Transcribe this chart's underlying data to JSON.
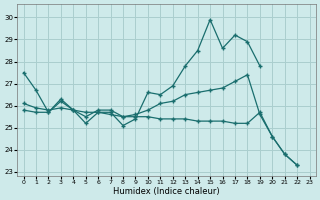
{
  "xlabel": "Humidex (Indice chaleur)",
  "bg_color": "#ceeaea",
  "grid_color": "#aacece",
  "line_color": "#1a6e6e",
  "xlim": [
    -0.5,
    23.5
  ],
  "ylim": [
    22.8,
    30.6
  ],
  "yticks": [
    23,
    24,
    25,
    26,
    27,
    28,
    29,
    30
  ],
  "xticks": [
    0,
    1,
    2,
    3,
    4,
    5,
    6,
    7,
    8,
    9,
    10,
    11,
    12,
    13,
    14,
    15,
    16,
    17,
    18,
    19,
    20,
    21,
    22,
    23
  ],
  "line1_x": [
    0,
    1,
    2,
    3,
    4,
    5,
    6,
    7,
    8,
    9,
    10,
    11,
    12,
    13,
    14,
    15,
    16,
    17,
    18,
    19
  ],
  "line1_y": [
    27.5,
    26.7,
    25.7,
    26.3,
    25.8,
    25.2,
    25.7,
    25.7,
    25.1,
    25.4,
    26.6,
    26.5,
    26.9,
    27.8,
    28.5,
    29.9,
    28.6,
    29.2,
    28.9,
    27.8
  ],
  "line2_x": [
    0,
    1,
    2,
    3,
    4,
    5,
    6,
    7,
    8,
    9,
    10,
    11,
    12,
    13,
    14,
    15,
    16,
    17,
    18,
    19,
    20,
    21,
    22
  ],
  "line2_y": [
    25.8,
    25.7,
    25.7,
    26.2,
    25.8,
    25.5,
    25.8,
    25.8,
    25.5,
    25.6,
    25.8,
    26.1,
    26.2,
    26.5,
    26.6,
    26.7,
    26.8,
    27.1,
    27.4,
    25.6,
    24.6,
    23.8,
    23.3
  ],
  "line3_x": [
    0,
    1,
    2,
    3,
    4,
    5,
    6,
    7,
    8,
    9,
    10,
    11,
    12,
    13,
    14,
    15,
    16,
    17,
    18,
    19,
    20,
    21,
    22
  ],
  "line3_y": [
    26.1,
    25.9,
    25.8,
    25.9,
    25.8,
    25.7,
    25.7,
    25.6,
    25.5,
    25.5,
    25.5,
    25.4,
    25.4,
    25.4,
    25.3,
    25.3,
    25.3,
    25.2,
    25.2,
    25.7,
    24.6,
    23.8,
    23.3
  ]
}
